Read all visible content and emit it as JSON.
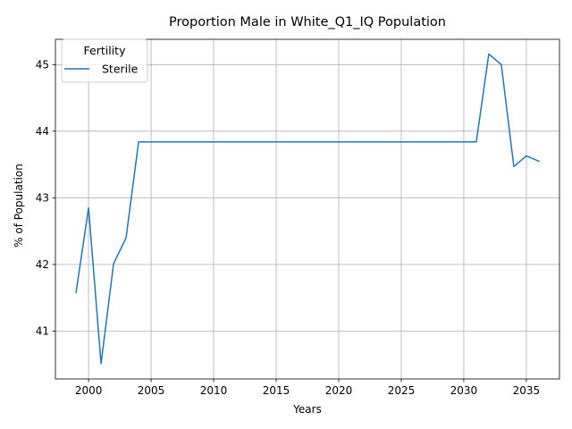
{
  "chart_data": {
    "type": "line",
    "title": "Proportion Male in White_Q1_IQ Population",
    "xlabel": "Years",
    "ylabel": "% of Population",
    "xlim": [
      1997.35,
      2037.65
    ],
    "ylim": [
      40.28,
      45.38
    ],
    "xticks": [
      2000,
      2005,
      2010,
      2015,
      2020,
      2025,
      2030,
      2035
    ],
    "yticks": [
      41,
      42,
      43,
      44,
      45
    ],
    "grid": true,
    "legend": {
      "title": "Fertility",
      "placement": "upper-left"
    },
    "series": [
      {
        "name": "Sterile",
        "color": "#1f77b4",
        "x": [
          1999,
          2000,
          2001,
          2002,
          2003,
          2004,
          2005,
          2006,
          2007,
          2008,
          2009,
          2010,
          2011,
          2012,
          2013,
          2014,
          2015,
          2016,
          2017,
          2018,
          2019,
          2020,
          2021,
          2022,
          2023,
          2024,
          2025,
          2026,
          2027,
          2028,
          2029,
          2030,
          2031,
          2032,
          2033,
          2034,
          2035,
          2036
        ],
        "y": [
          41.58,
          42.85,
          40.51,
          42.01,
          42.4,
          43.84,
          43.84,
          43.84,
          43.84,
          43.84,
          43.84,
          43.84,
          43.84,
          43.84,
          43.84,
          43.84,
          43.84,
          43.84,
          43.84,
          43.84,
          43.84,
          43.84,
          43.84,
          43.84,
          43.84,
          43.84,
          43.84,
          43.84,
          43.84,
          43.84,
          43.84,
          43.84,
          43.84,
          45.16,
          45.0,
          43.47,
          43.63,
          43.55
        ]
      }
    ]
  }
}
